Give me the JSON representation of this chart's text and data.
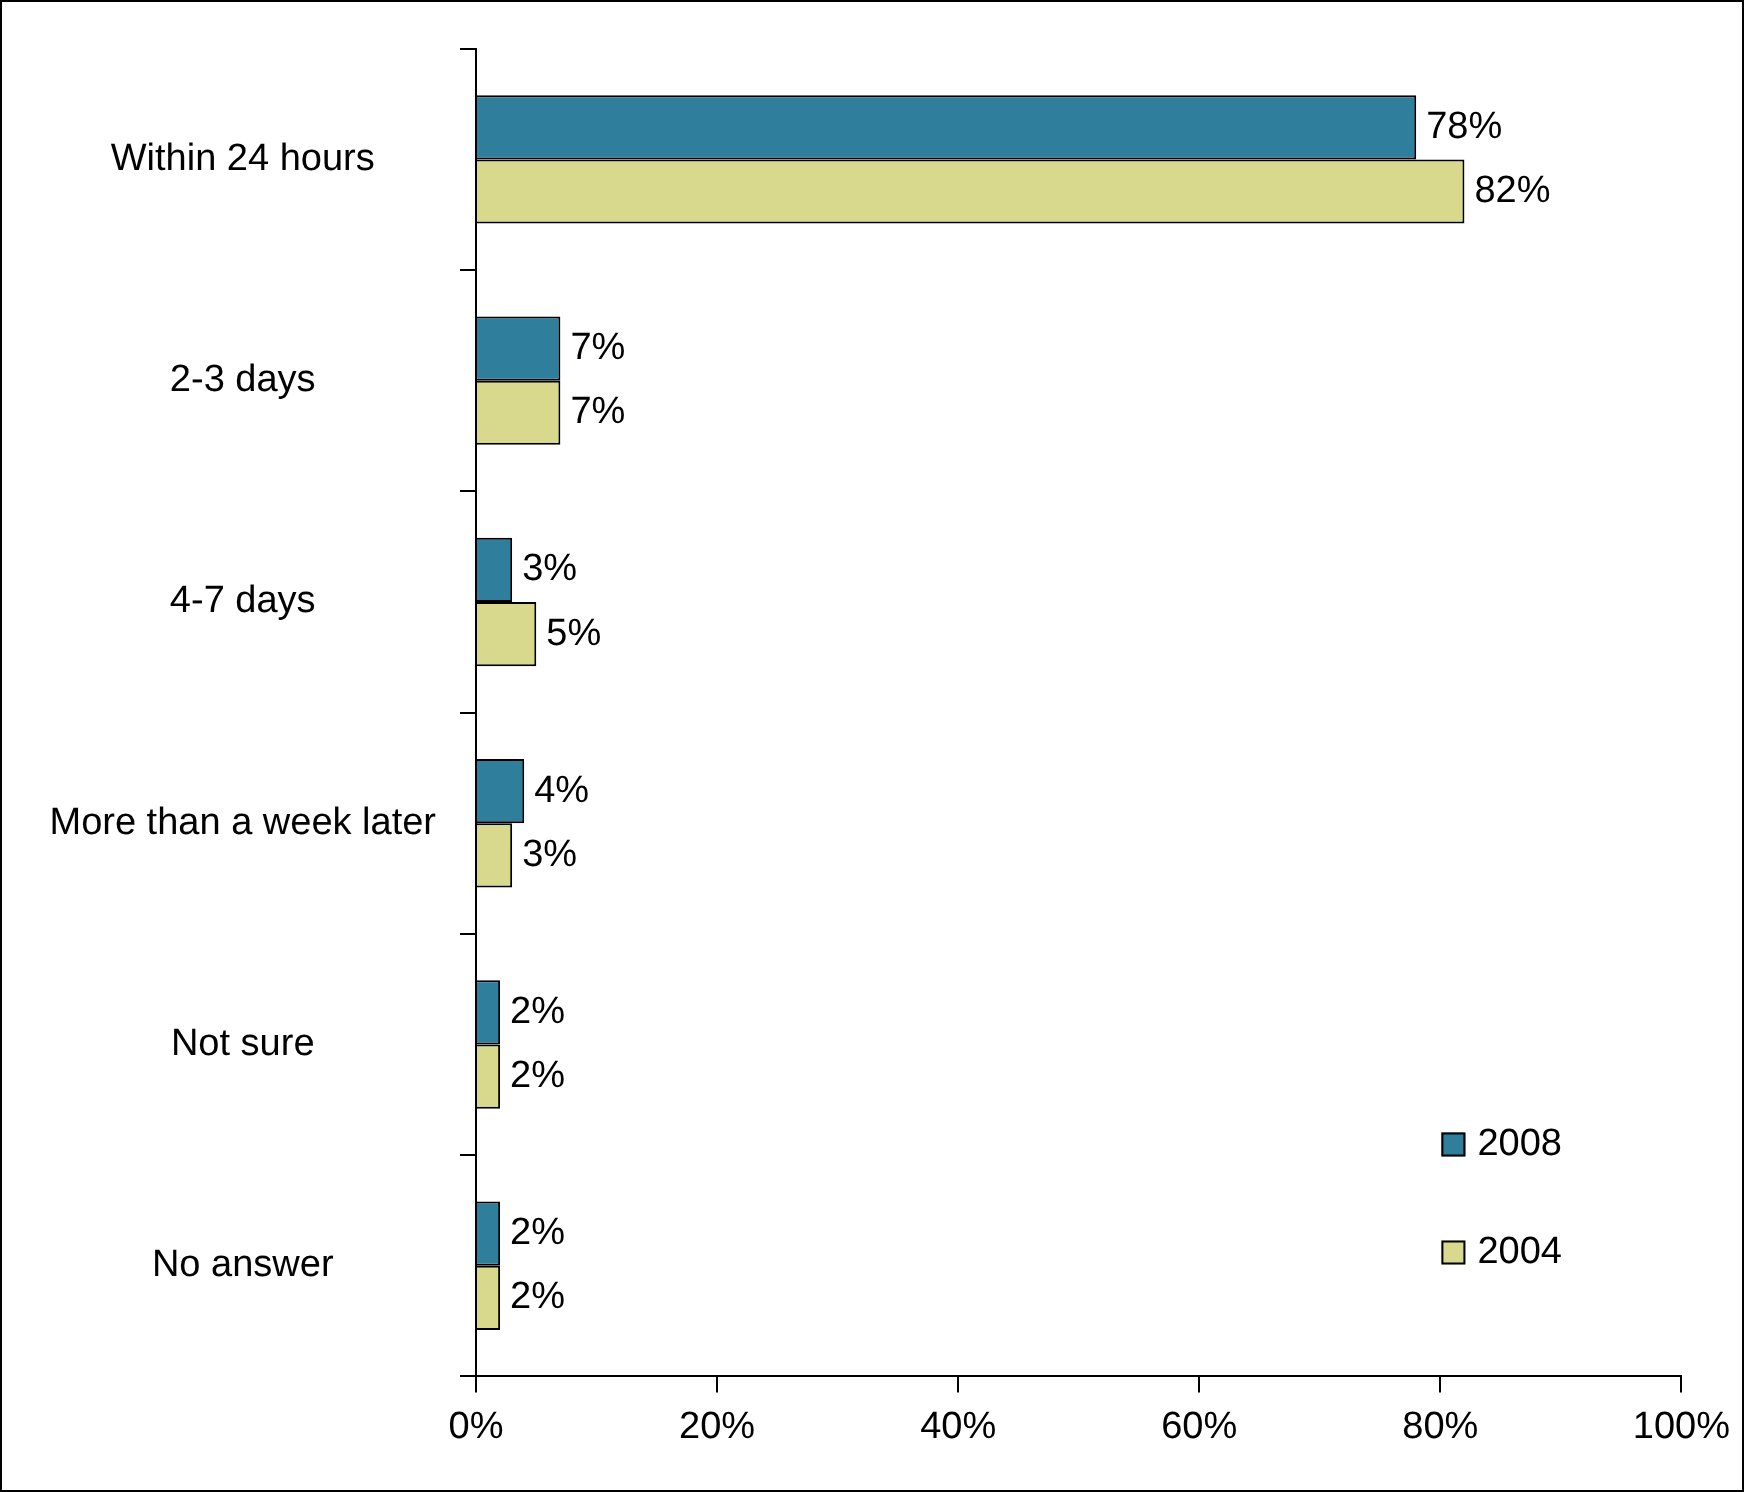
{
  "chart_data": {
    "type": "bar",
    "orientation": "horizontal",
    "categories": [
      "Within 24 hours",
      "2-3 days",
      "4-7 days",
      "More than a week later",
      "Not sure",
      "No answer"
    ],
    "series": [
      {
        "name": "2008",
        "color": "#2f7f9c",
        "values": [
          78,
          7,
          3,
          4,
          2,
          2
        ],
        "value_labels": [
          "78%",
          "7%",
          "3%",
          "4%",
          "2%",
          "2%"
        ]
      },
      {
        "name": "2004",
        "color": "#d9d98e",
        "values": [
          82,
          7,
          5,
          3,
          2,
          2
        ],
        "value_labels": [
          "82%",
          "7%",
          "5%",
          "3%",
          "2%",
          "2%"
        ]
      }
    ],
    "xlim": [
      0,
      100
    ],
    "xticks": [
      {
        "value": 0,
        "label": "0%"
      },
      {
        "value": 20,
        "label": "20%"
      },
      {
        "value": 40,
        "label": "40%"
      },
      {
        "value": 60,
        "label": "60%"
      },
      {
        "value": 80,
        "label": "80%"
      },
      {
        "value": 100,
        "label": "100%"
      }
    ],
    "grid": false,
    "legend": "bottom right"
  }
}
